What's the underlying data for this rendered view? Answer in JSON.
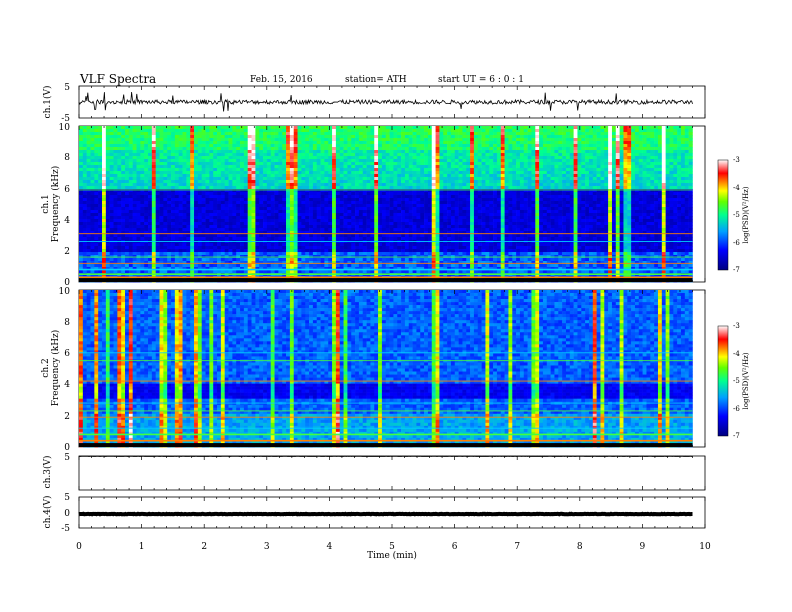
{
  "header": {
    "title": "VLF  Spectra",
    "date": "Feb. 15, 2016",
    "station": "station= ATH",
    "start": "start  UT  =   6  : 0  : 1"
  },
  "chart_data": [
    {
      "type": "line",
      "ylabel": "ch.1(V)",
      "ylim": [
        -5,
        5
      ],
      "y_ticks": [
        "5",
        "-5"
      ],
      "xlim": [
        0,
        10
      ],
      "trace": {
        "baseline": 0,
        "noise_amplitude": 1.3,
        "spike_amplitude": 2.5,
        "end_x": 9.8
      }
    },
    {
      "type": "heatmap",
      "channel_label": "ch.1",
      "ylabel": "Frequency  (kHz)",
      "ylim": [
        0,
        10
      ],
      "y_ticks": [
        "0",
        "2",
        "4",
        "6",
        "8",
        "10"
      ],
      "xlim": [
        0,
        9.8
      ],
      "colorbar": {
        "label": "log(PSD)(V²/Hz)",
        "ticks": [
          "-3",
          "-4",
          "-5",
          "-6",
          "-7"
        ],
        "range": [
          -7,
          -3
        ]
      },
      "quiet_band_kHz": [
        2,
        6
      ],
      "bright_lines_kHz": [
        0.3,
        0.5,
        0.8,
        1.2,
        1.6,
        2.6,
        3.1,
        5.9
      ]
    },
    {
      "type": "heatmap",
      "channel_label": "ch.2",
      "ylabel": "Frequency  (kHz)",
      "ylim": [
        0,
        10
      ],
      "y_ticks": [
        "0",
        "2",
        "4",
        "6",
        "8",
        "10"
      ],
      "xlim": [
        0,
        9.8
      ],
      "colorbar": {
        "label": "log(PSD)(V²/Hz)",
        "ticks": [
          "-3",
          "-4",
          "-5",
          "-6",
          "-7"
        ],
        "range": [
          -7,
          -3
        ]
      },
      "quiet_band_kHz": [
        3,
        4
      ],
      "bright_lines_kHz": [
        0.4,
        0.8,
        1.2,
        1.9,
        2.3,
        2.8,
        4.2,
        5.5,
        6.0
      ]
    },
    {
      "type": "line",
      "ylabel": "ch.3(V)",
      "ylim": [
        -5,
        5
      ],
      "y_ticks": [
        "5"
      ],
      "xlim": [
        0,
        10
      ],
      "trace": {
        "baseline": 4.9,
        "noise_amplitude": 0.05,
        "end_x": 9.8
      }
    },
    {
      "type": "line",
      "ylabel": "ch.4(V)",
      "ylim": [
        -5,
        5
      ],
      "y_ticks": [
        "5",
        "0",
        "-5"
      ],
      "xlim": [
        0,
        10
      ],
      "trace": {
        "baseline": -0.5,
        "noise_amplitude": 0.15,
        "end_x": 9.8
      }
    }
  ],
  "x_axis": {
    "label": "Time  (min)",
    "ticks": [
      "0",
      "1",
      "2",
      "3",
      "4",
      "5",
      "6",
      "7",
      "8",
      "9",
      "10"
    ],
    "xlim": [
      0,
      10
    ]
  }
}
